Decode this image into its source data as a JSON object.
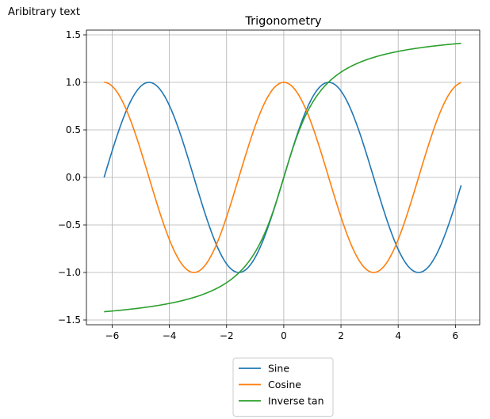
{
  "annotation": "Aribitrary text",
  "chart_data": {
    "type": "line",
    "title": "Trigonometry",
    "xlabel": "",
    "ylabel": "",
    "xlim": [
      -6.9,
      6.85
    ],
    "ylim": [
      -1.55,
      1.55
    ],
    "xticks": [
      -6,
      -4,
      -2,
      0,
      2,
      4,
      6
    ],
    "xtick_labels": [
      "−6",
      "−4",
      "−2",
      "0",
      "2",
      "4",
      "6"
    ],
    "yticks": [
      -1.5,
      -1.0,
      -0.5,
      0.0,
      0.5,
      1.0,
      1.5
    ],
    "ytick_labels": [
      "−1.5",
      "−1.0",
      "−0.5",
      "0.0",
      "0.5",
      "1.0",
      "1.5"
    ],
    "grid": true,
    "legend_position": "below chart",
    "x_range": [
      -6.283,
      6.2
    ],
    "series": [
      {
        "name": "Sine",
        "color": "#1f77b4",
        "x": [
          -6.283,
          -5.5,
          -4.712,
          -3.927,
          -3.142,
          -2.356,
          -1.571,
          -0.785,
          0,
          0.785,
          1.571,
          2.356,
          3.142,
          3.927,
          4.712,
          5.5,
          6.2
        ],
        "y": [
          0,
          0.71,
          1,
          0.71,
          0,
          -0.71,
          -1,
          -0.71,
          0,
          0.71,
          1,
          0.71,
          0,
          -0.71,
          -1,
          -0.71,
          -0.08
        ]
      },
      {
        "name": "Cosine",
        "color": "#ff7f0e",
        "x": [
          -6.283,
          -5.5,
          -4.712,
          -3.927,
          -3.142,
          -2.356,
          -1.571,
          -0.785,
          0,
          0.785,
          1.571,
          2.356,
          3.142,
          3.927,
          4.712,
          5.5,
          6.2
        ],
        "y": [
          1,
          0.71,
          0,
          -0.71,
          -1,
          -0.71,
          0,
          0.71,
          1,
          0.71,
          0,
          -0.71,
          -1,
          -0.71,
          0,
          0.71,
          1
        ]
      },
      {
        "name": "Inverse tan",
        "color": "#2ca02c",
        "x": [
          -6.283,
          -5,
          -4,
          -3,
          -2,
          -1.5,
          -1,
          -0.5,
          0,
          0.5,
          1,
          1.5,
          2,
          3,
          4,
          5,
          6.2
        ],
        "y": [
          -1.41,
          -1.37,
          -1.33,
          -1.25,
          -1.11,
          -0.98,
          -0.79,
          -0.46,
          0,
          0.46,
          0.79,
          0.98,
          1.11,
          1.25,
          1.33,
          1.37,
          1.41
        ]
      }
    ]
  }
}
